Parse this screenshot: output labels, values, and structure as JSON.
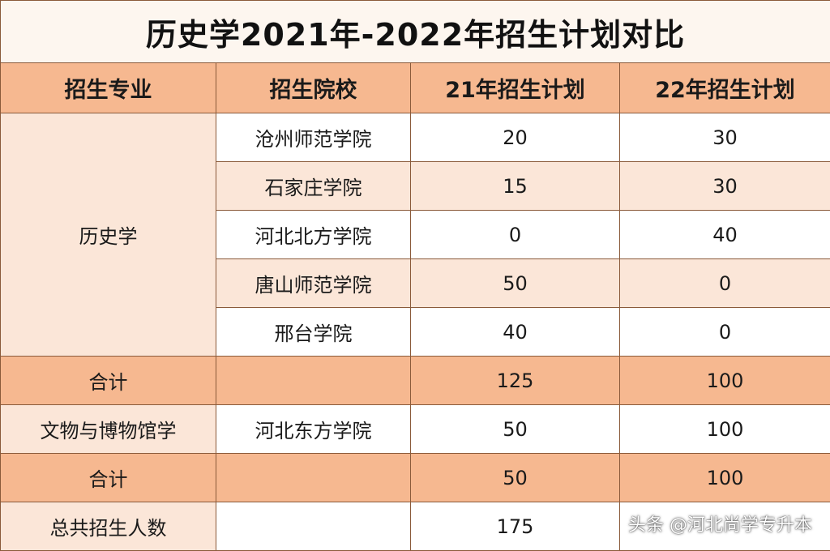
{
  "title": "历史学2021年-2022年招生计划对比",
  "headers": [
    "招生专业",
    "招生院校",
    "21年招生计划",
    "22年招生计划"
  ],
  "group1": {
    "major": "历史学",
    "rows": [
      {
        "school": "沧州师范学院",
        "plan21": "20",
        "plan22": "30"
      },
      {
        "school": "石家庄学院",
        "plan21": "15",
        "plan22": "30"
      },
      {
        "school": "河北北方学院",
        "plan21": "0",
        "plan22": "40"
      },
      {
        "school": "唐山师范学院",
        "plan21": "50",
        "plan22": "0"
      },
      {
        "school": "邢台学院",
        "plan21": "40",
        "plan22": "0"
      }
    ],
    "subtotal": {
      "label": "合计",
      "plan21": "125",
      "plan22": "100"
    }
  },
  "group2": {
    "major": "文物与博物馆学",
    "school": "河北东方学院",
    "plan21": "50",
    "plan22": "100",
    "subtotal": {
      "label": "合计",
      "plan21": "50",
      "plan22": "100"
    }
  },
  "grand_total": {
    "label": "总共招生人数",
    "plan21": "175"
  },
  "watermark": "头条 @河北尚学专升本"
}
